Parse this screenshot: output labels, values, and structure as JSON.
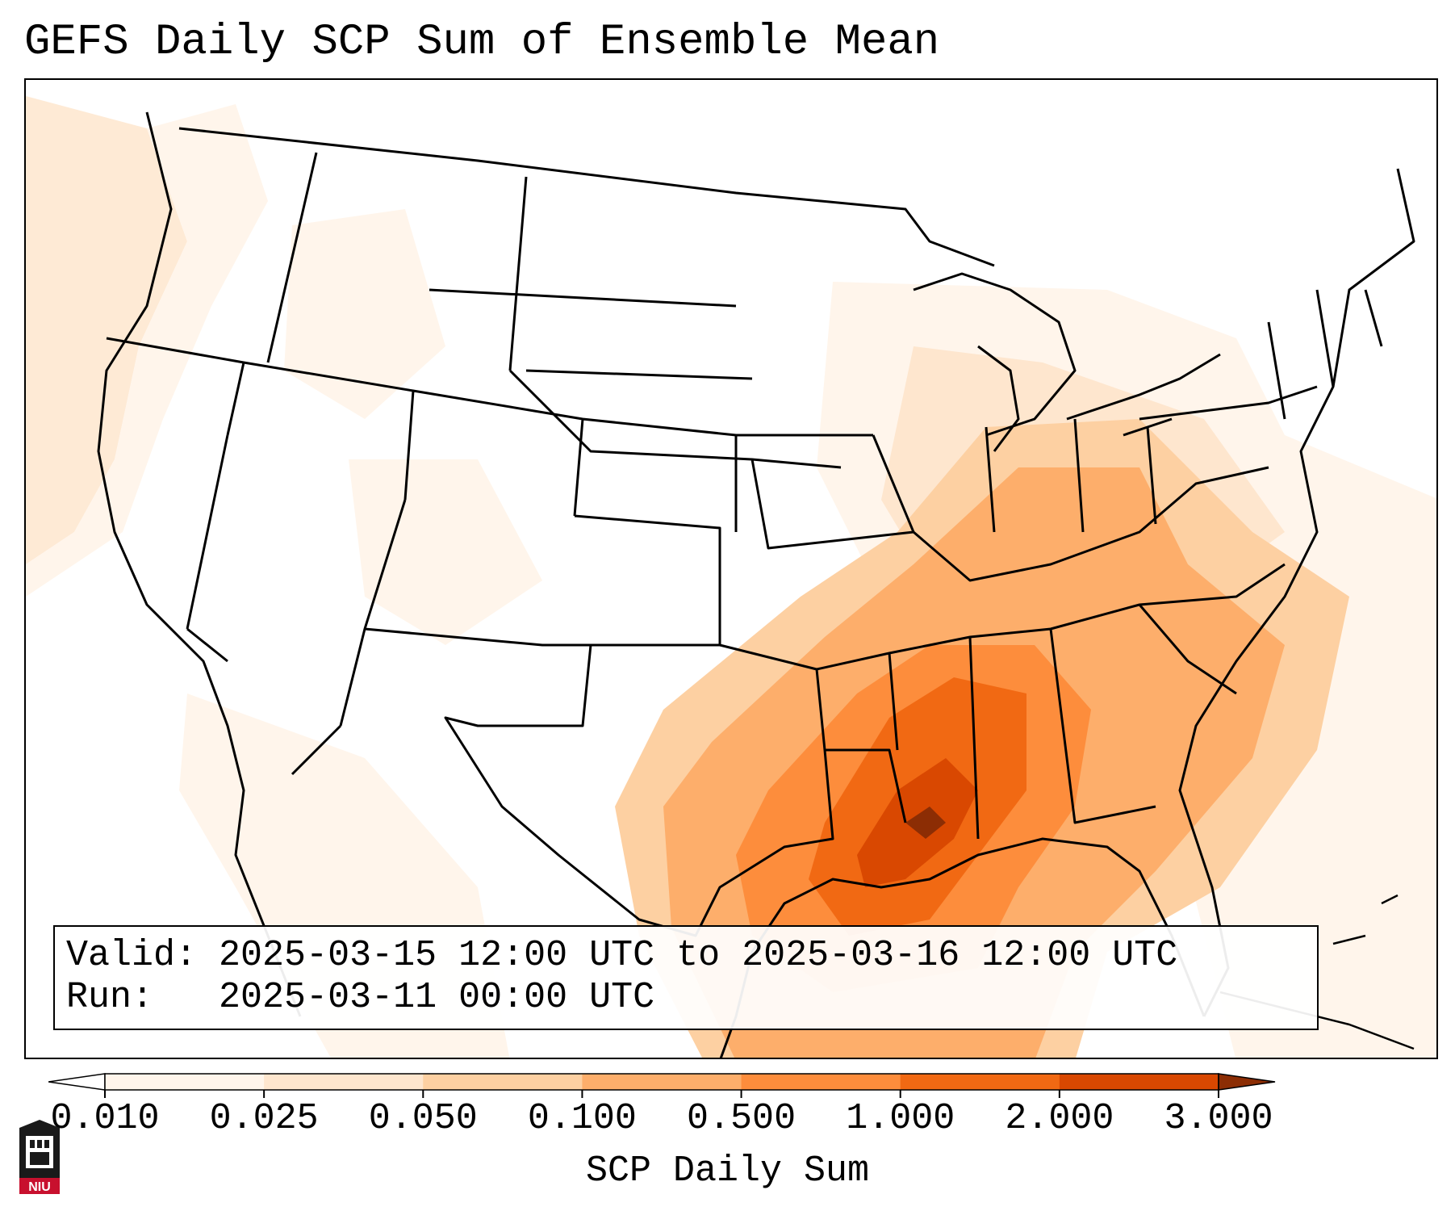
{
  "title": "GEFS Daily SCP Sum of Ensemble Mean",
  "info": {
    "valid_label": "Valid:",
    "valid_value": "2025-03-15 12:00 UTC to 2025-03-16 12:00 UTC",
    "run_label": "Run:",
    "run_value": "2025-03-11 00:00 UTC"
  },
  "colorbar": {
    "label": "SCP Daily Sum",
    "ticks": [
      "0.010",
      "0.025",
      "0.050",
      "0.100",
      "0.500",
      "1.000",
      "2.000",
      "3.000"
    ],
    "colors": [
      "#fff5eb",
      "#fee6ce",
      "#fdd0a2",
      "#fdae6b",
      "#fd8d3c",
      "#f16913",
      "#d94801",
      "#8c2d04"
    ]
  },
  "logo": {
    "text": "NIU"
  },
  "map": {
    "projection": "Lambert conformal, CONUS",
    "background": "#ffffff",
    "boundary_color": "#000000"
  }
}
